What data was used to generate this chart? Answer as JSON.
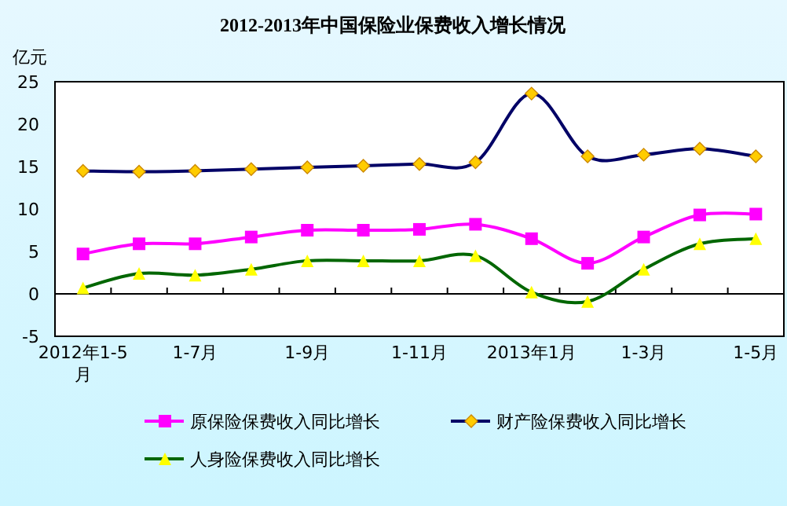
{
  "chart_data": {
    "type": "line",
    "title": "2012-2013年中国保险业保费收入增长情况",
    "ylabel": "亿元",
    "categories": [
      "2012年1-5月",
      null,
      "1-7月",
      null,
      "1-9月",
      null,
      "1-11月",
      null,
      "2013年1月",
      null,
      "1-3月",
      null,
      "1-5月"
    ],
    "series": [
      {
        "name": "原保险保费收入同比增长",
        "color": "#ff00ff",
        "marker": "square",
        "values": [
          4.7,
          5.9,
          5.9,
          6.7,
          7.5,
          7.5,
          7.6,
          8.2,
          6.5,
          3.6,
          6.7,
          9.3,
          9.4
        ]
      },
      {
        "name": "财产险保费收入同比增长",
        "color": "#000066",
        "marker": "diamond",
        "values": [
          14.5,
          14.4,
          14.5,
          14.7,
          14.9,
          15.1,
          15.3,
          15.5,
          23.6,
          16.2,
          16.4,
          17.1,
          16.2
        ]
      },
      {
        "name": "人身险保费收入同比增长",
        "color": "#006600",
        "marker": "triangle",
        "values": [
          0.7,
          2.4,
          2.2,
          2.9,
          3.9,
          3.9,
          3.9,
          4.5,
          0.2,
          -0.9,
          2.9,
          5.9,
          6.5
        ]
      }
    ],
    "ylim": [
      -5,
      25
    ],
    "yticks": [
      -5,
      0,
      5,
      10,
      15,
      20,
      25
    ],
    "legend": "bottom"
  }
}
